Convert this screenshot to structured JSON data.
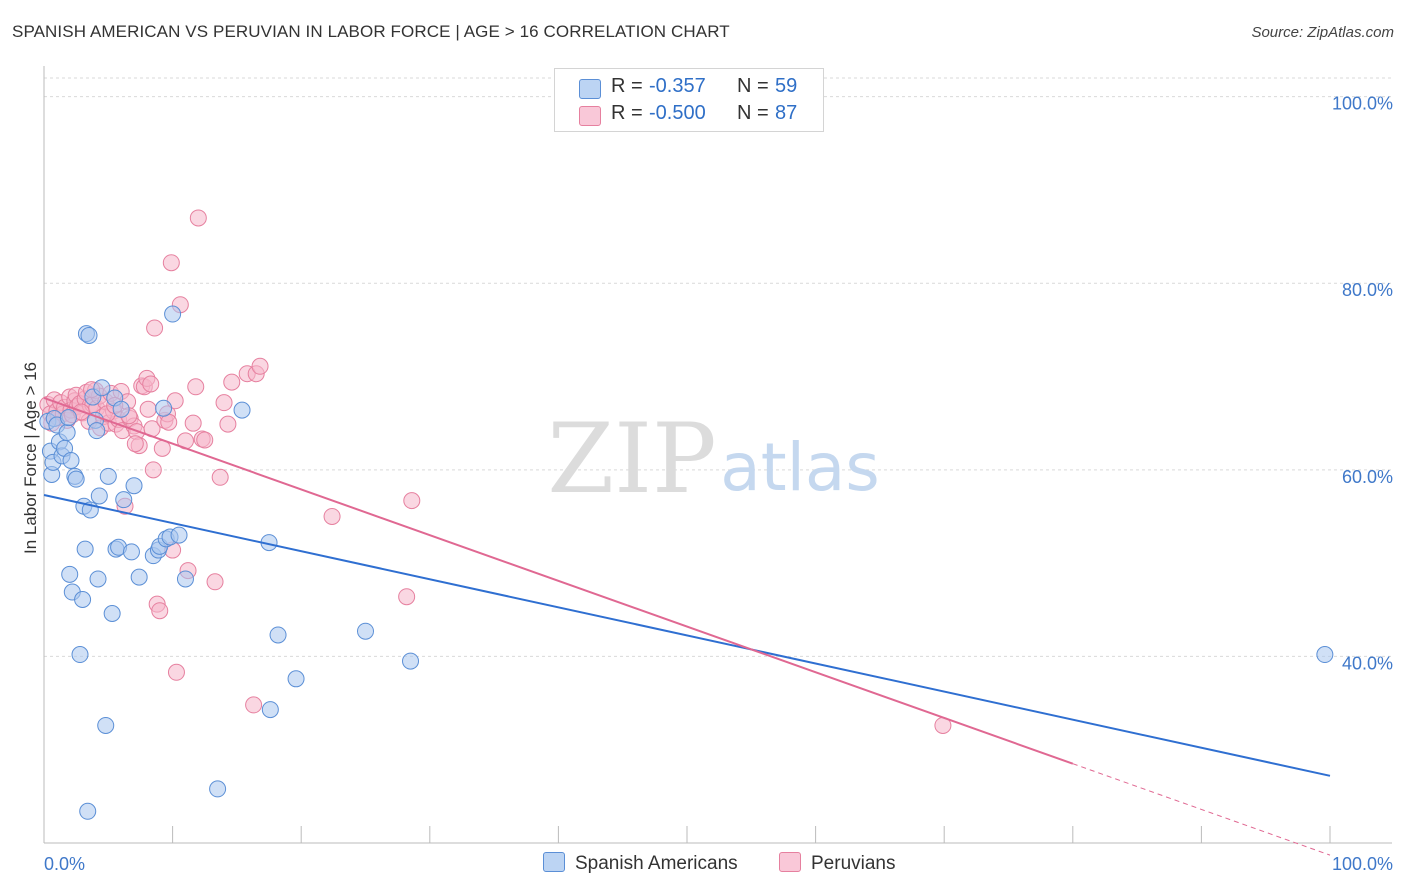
{
  "header": {
    "title": "SPANISH AMERICAN VS PERUVIAN IN LABOR FORCE | AGE > 16 CORRELATION CHART",
    "source": "Source: ZipAtlas.com"
  },
  "watermark": {
    "zip": "ZIP",
    "atlas": "atlas"
  },
  "stats_legend": {
    "r_label": "R =",
    "n_label": "N =",
    "rows": [
      {
        "series": "Spanish Americans",
        "r": "-0.357",
        "n": "59"
      },
      {
        "series": "Peruvians",
        "r": "-0.500",
        "n": "87"
      }
    ]
  },
  "colors": {
    "blue_fill": "#a9c7ef",
    "blue_stroke": "#5b8fd6",
    "blue_line": "#2f6fd1",
    "pink_fill": "#f6b6cb",
    "pink_stroke": "#e6809f",
    "pink_line": "#e06892",
    "axis_text": "#3f78c9",
    "grid": "#d9d9d9"
  },
  "chart_data": {
    "type": "scatter",
    "title": "SPANISH AMERICAN VS PERUVIAN IN LABOR FORCE | AGE > 16 CORRELATION CHART",
    "xlabel": "",
    "ylabel": "In Labor Force | Age > 16",
    "xlim": [
      0,
      100
    ],
    "ylim": [
      20,
      102
    ],
    "x_tick_labels": [
      "0.0%",
      "100.0%"
    ],
    "y_ticks": [
      40,
      60,
      80,
      100
    ],
    "y_tick_labels": [
      "40.0%",
      "60.0%",
      "80.0%",
      "100.0%"
    ],
    "grid": true,
    "legend_position": "bottom-center",
    "series": [
      {
        "name": "Spanish Americans",
        "color": "#a9c7ef",
        "r": -0.357,
        "n": 59,
        "trend": {
          "x": [
            0,
            100
          ],
          "y": [
            57.3,
            27.2
          ]
        },
        "points": [
          [
            0.3,
            65.2
          ],
          [
            0.5,
            62.0
          ],
          [
            0.6,
            59.5
          ],
          [
            0.7,
            60.8
          ],
          [
            0.8,
            65.5
          ],
          [
            1.0,
            64.8
          ],
          [
            1.2,
            63.0
          ],
          [
            1.4,
            61.5
          ],
          [
            1.6,
            62.3
          ],
          [
            1.8,
            64.0
          ],
          [
            1.9,
            65.6
          ],
          [
            2.0,
            48.8
          ],
          [
            2.1,
            61.0
          ],
          [
            2.2,
            46.9
          ],
          [
            2.4,
            59.3
          ],
          [
            2.5,
            59.0
          ],
          [
            2.8,
            40.2
          ],
          [
            3.0,
            46.1
          ],
          [
            3.1,
            56.1
          ],
          [
            3.2,
            51.5
          ],
          [
            3.3,
            74.6
          ],
          [
            3.4,
            23.4
          ],
          [
            3.5,
            74.4
          ],
          [
            3.6,
            55.7
          ],
          [
            3.8,
            67.8
          ],
          [
            4.0,
            65.3
          ],
          [
            4.1,
            64.2
          ],
          [
            4.2,
            48.3
          ],
          [
            4.3,
            57.2
          ],
          [
            4.5,
            68.8
          ],
          [
            4.8,
            32.6
          ],
          [
            5.0,
            59.3
          ],
          [
            5.3,
            44.6
          ],
          [
            5.5,
            67.7
          ],
          [
            5.6,
            51.5
          ],
          [
            5.8,
            51.7
          ],
          [
            6.0,
            66.5
          ],
          [
            6.2,
            56.8
          ],
          [
            6.8,
            51.2
          ],
          [
            7.0,
            58.3
          ],
          [
            7.4,
            48.5
          ],
          [
            8.5,
            50.8
          ],
          [
            8.9,
            51.4
          ],
          [
            9.0,
            51.8
          ],
          [
            9.3,
            66.6
          ],
          [
            9.5,
            52.6
          ],
          [
            9.8,
            52.8
          ],
          [
            10.0,
            76.7
          ],
          [
            10.5,
            53.0
          ],
          [
            11.0,
            48.3
          ],
          [
            13.5,
            25.8
          ],
          [
            15.4,
            66.4
          ],
          [
            17.5,
            52.2
          ],
          [
            17.6,
            34.3
          ],
          [
            18.2,
            42.3
          ],
          [
            19.6,
            37.6
          ],
          [
            25.0,
            42.7
          ],
          [
            28.5,
            39.5
          ],
          [
            99.6,
            40.2
          ]
        ]
      },
      {
        "name": "Peruvians",
        "color": "#f6b6cb",
        "r": -0.5,
        "n": 87,
        "trend": {
          "x": [
            0,
            80
          ],
          "y": [
            67.7,
            28.5
          ]
        },
        "trend_dashed": {
          "x": [
            80,
            100
          ],
          "y": [
            28.5,
            18.7
          ]
        },
        "points": [
          [
            0.3,
            67.0
          ],
          [
            0.5,
            66.0
          ],
          [
            0.6,
            65.0
          ],
          [
            0.8,
            67.5
          ],
          [
            1.0,
            66.3
          ],
          [
            1.1,
            65.6
          ],
          [
            1.3,
            67.2
          ],
          [
            1.5,
            66.0
          ],
          [
            1.6,
            66.7
          ],
          [
            1.8,
            65.3
          ],
          [
            2.0,
            67.8
          ],
          [
            2.1,
            66.4
          ],
          [
            2.2,
            65.9
          ],
          [
            2.4,
            67.4
          ],
          [
            2.5,
            68.0
          ],
          [
            2.6,
            66.8
          ],
          [
            2.8,
            67.1
          ],
          [
            3.0,
            66.1
          ],
          [
            3.2,
            67.6
          ],
          [
            3.3,
            68.3
          ],
          [
            3.5,
            65.2
          ],
          [
            3.6,
            66.9
          ],
          [
            3.8,
            67.0
          ],
          [
            4.0,
            68.5
          ],
          [
            4.1,
            66.6
          ],
          [
            4.3,
            67.9
          ],
          [
            4.4,
            64.5
          ],
          [
            4.6,
            65.7
          ],
          [
            4.8,
            67.3
          ],
          [
            5.0,
            65.0
          ],
          [
            5.2,
            68.2
          ],
          [
            5.4,
            66.3
          ],
          [
            5.6,
            64.9
          ],
          [
            5.8,
            65.4
          ],
          [
            6.0,
            68.4
          ],
          [
            6.1,
            64.2
          ],
          [
            6.3,
            56.1
          ],
          [
            6.5,
            67.3
          ],
          [
            6.7,
            65.5
          ],
          [
            7.0,
            64.7
          ],
          [
            7.2,
            64.1
          ],
          [
            7.4,
            62.6
          ],
          [
            7.6,
            69.0
          ],
          [
            7.8,
            68.9
          ],
          [
            8.0,
            69.8
          ],
          [
            8.1,
            66.5
          ],
          [
            8.3,
            69.2
          ],
          [
            8.4,
            64.4
          ],
          [
            8.5,
            60.0
          ],
          [
            8.6,
            75.2
          ],
          [
            8.8,
            45.6
          ],
          [
            9.0,
            44.9
          ],
          [
            9.2,
            62.3
          ],
          [
            9.4,
            65.3
          ],
          [
            9.6,
            66.0
          ],
          [
            9.7,
            65.1
          ],
          [
            9.9,
            82.2
          ],
          [
            10.0,
            51.4
          ],
          [
            10.2,
            67.4
          ],
          [
            10.3,
            38.3
          ],
          [
            10.6,
            77.7
          ],
          [
            11.0,
            63.1
          ],
          [
            11.2,
            49.2
          ],
          [
            11.6,
            65.0
          ],
          [
            11.8,
            68.9
          ],
          [
            12.0,
            87.0
          ],
          [
            12.3,
            63.3
          ],
          [
            12.5,
            63.2
          ],
          [
            13.3,
            48.0
          ],
          [
            13.7,
            59.2
          ],
          [
            14.0,
            67.2
          ],
          [
            14.3,
            64.9
          ],
          [
            14.6,
            69.4
          ],
          [
            15.8,
            70.3
          ],
          [
            16.3,
            34.8
          ],
          [
            16.5,
            70.3
          ],
          [
            16.8,
            71.1
          ],
          [
            22.4,
            55.0
          ],
          [
            28.2,
            46.4
          ],
          [
            28.6,
            56.7
          ],
          [
            69.9,
            32.6
          ],
          [
            3.7,
            68.6
          ],
          [
            4.9,
            66.0
          ],
          [
            5.5,
            66.9
          ],
          [
            6.6,
            65.8
          ],
          [
            7.1,
            62.8
          ],
          [
            2.9,
            66.2
          ]
        ]
      }
    ]
  },
  "bottom_legend": {
    "items": [
      "Spanish Americans",
      "Peruvians"
    ]
  }
}
